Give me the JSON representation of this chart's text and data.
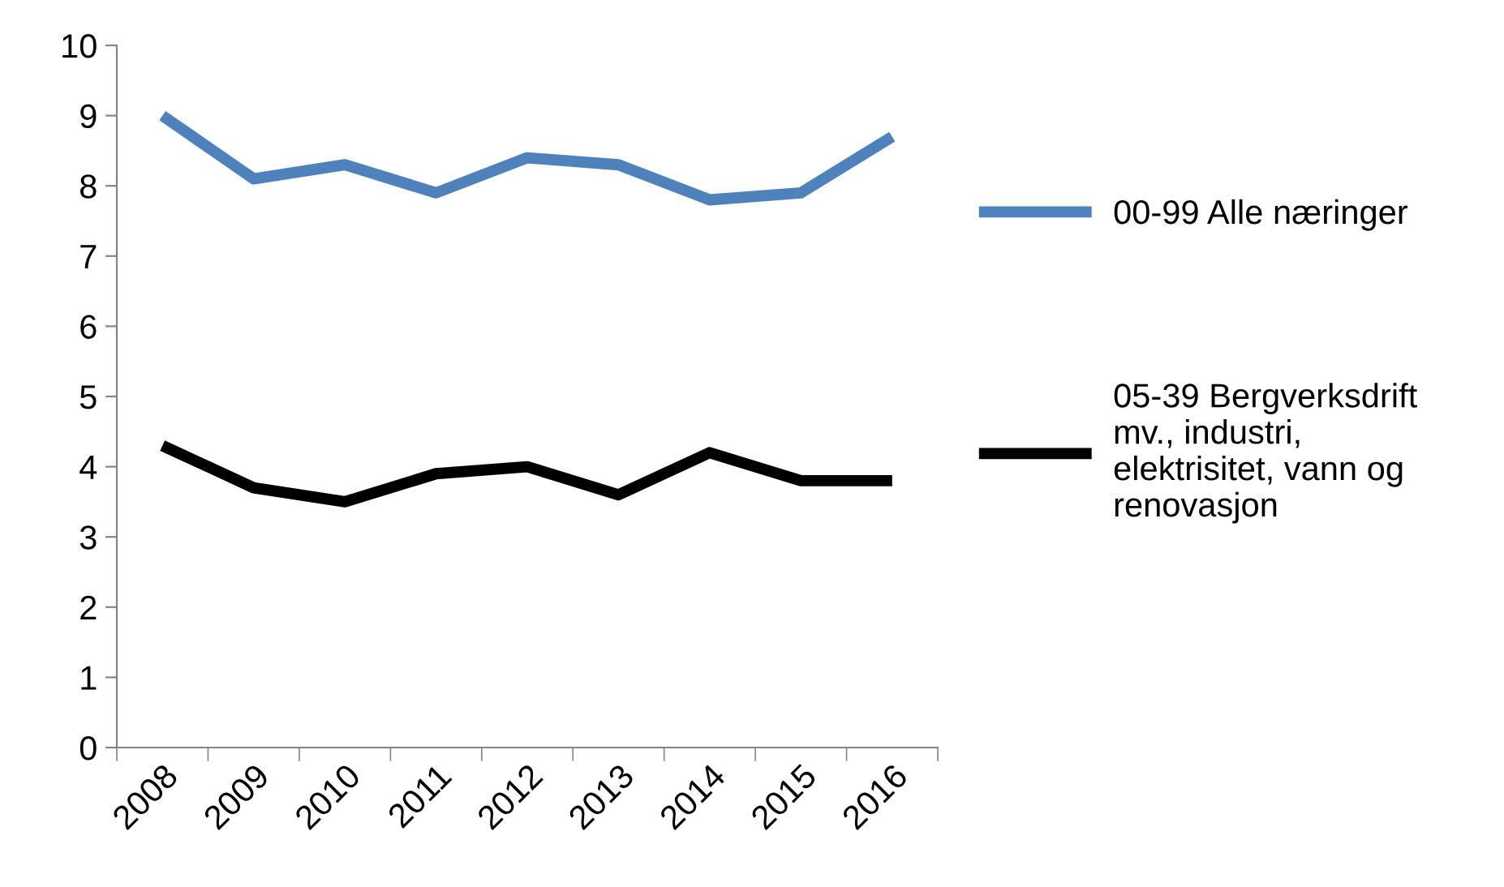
{
  "chart_data": {
    "type": "line",
    "categories": [
      "2008",
      "2009",
      "2010",
      "2011",
      "2012",
      "2013",
      "2014",
      "2015",
      "2016"
    ],
    "series": [
      {
        "name": "00-99 Alle næringer",
        "color": "#4f81bd",
        "values": [
          9.0,
          8.1,
          8.3,
          7.9,
          8.4,
          8.3,
          7.8,
          7.9,
          8.7
        ]
      },
      {
        "name": "05-39 Bergverksdrift mv., industri, elektrisitet, vann og renovasjon",
        "color": "#000000",
        "values": [
          4.3,
          3.7,
          3.5,
          3.9,
          4.0,
          3.6,
          4.2,
          3.8,
          3.8
        ]
      }
    ],
    "ylim": [
      0,
      10
    ],
    "yticks": [
      0,
      1,
      2,
      3,
      4,
      5,
      6,
      7,
      8,
      9,
      10
    ],
    "grid": false,
    "legend": "right",
    "marker": "none",
    "line_style": "solid"
  }
}
